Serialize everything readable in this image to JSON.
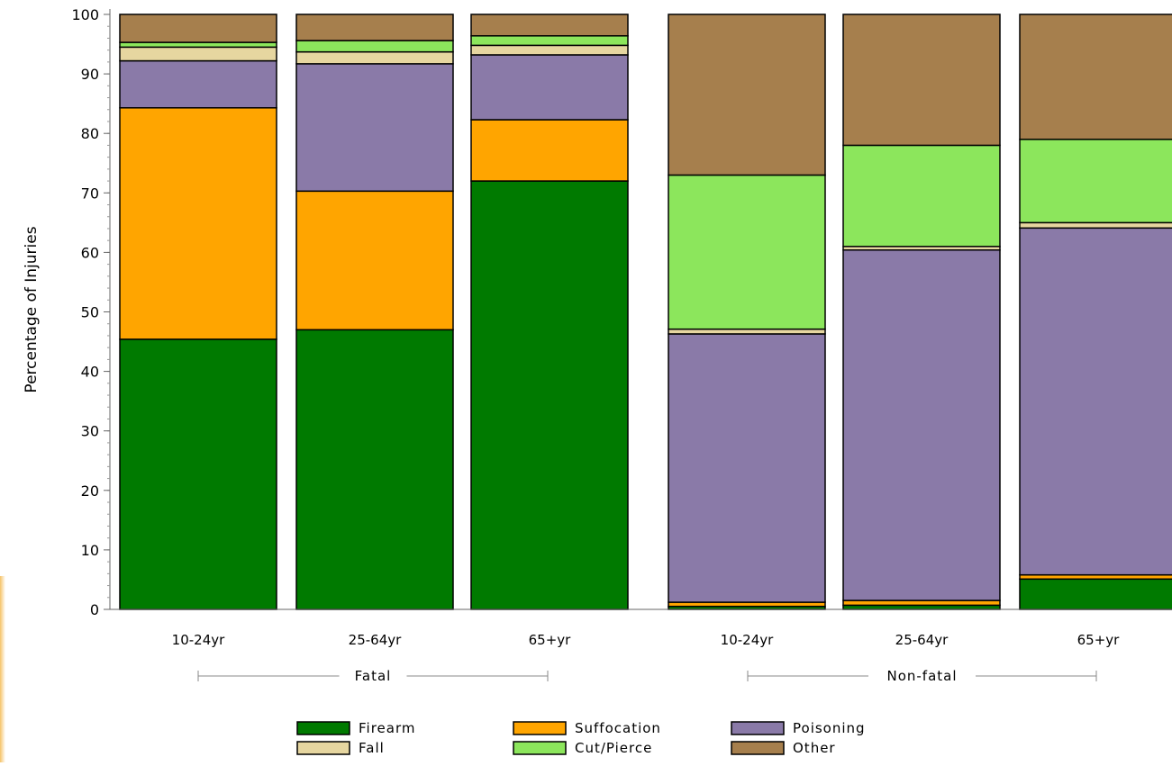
{
  "chart_data": {
    "type": "bar",
    "stacked": true,
    "ylabel": "Percentage of Injuries",
    "ylim": [
      0,
      100
    ],
    "yticks": [
      0,
      10,
      20,
      30,
      40,
      50,
      60,
      70,
      80,
      90,
      100
    ],
    "groups": [
      {
        "label": "Fatal",
        "categories": [
          "10-24yr",
          "25-64yr",
          "65+yr"
        ]
      },
      {
        "label": "Non-fatal",
        "categories": [
          "10-24yr",
          "25-64yr",
          "65+yr"
        ]
      }
    ],
    "series": [
      {
        "name": "Firearm",
        "color": "#007a00",
        "values": [
          45.4,
          47.0,
          72.0,
          0.5,
          0.7,
          5.1
        ]
      },
      {
        "name": "Suffocation",
        "color": "#ffa500",
        "values": [
          38.9,
          23.3,
          10.3,
          0.7,
          0.8,
          0.7
        ]
      },
      {
        "name": "Poisoning",
        "color": "#8a7aa8",
        "values": [
          7.9,
          21.4,
          10.9,
          45.1,
          58.9,
          58.3
        ]
      },
      {
        "name": "Fall",
        "color": "#e6d6a0",
        "values": [
          2.3,
          2.0,
          1.6,
          0.8,
          0.6,
          0.9
        ]
      },
      {
        "name": "Cut/Pierce",
        "color": "#8ce65c",
        "values": [
          0.8,
          1.9,
          1.6,
          25.9,
          17.0,
          14.0
        ]
      },
      {
        "name": "Other",
        "color": "#a67f4d",
        "values": [
          4.7,
          4.4,
          3.6,
          27.0,
          22.0,
          21.0
        ]
      }
    ],
    "legend_position": "bottom",
    "grid": false
  }
}
